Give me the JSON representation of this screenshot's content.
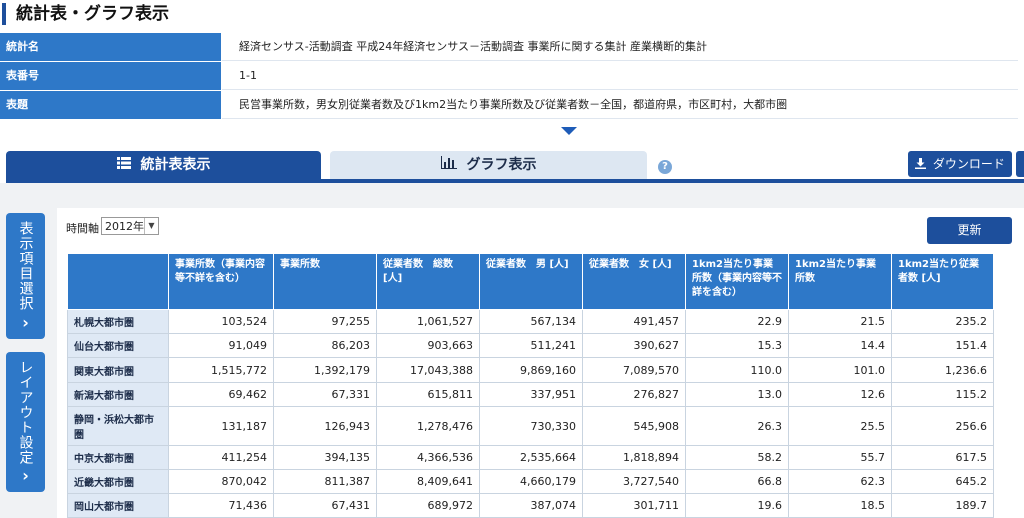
{
  "page": {
    "title": "統計表・グラフ表示"
  },
  "meta": [
    {
      "label": "統計名",
      "value": "経済センサス-活動調査 平成24年経済センサス－活動調査 事業所に関する集計 産業横断的集計"
    },
    {
      "label": "表番号",
      "value": "1-1"
    },
    {
      "label": "表題",
      "value": "民営事業所数，男女別従業者数及び1km2当たり事業所数及び従業者数－全国，都道府県，市区町村，大都市圏"
    }
  ],
  "tabs": {
    "table_label": "統計表表示",
    "graph_label": "グラフ表示"
  },
  "toolbar": {
    "help": "?",
    "download_label": "ダウンロード",
    "refresh_label": "更新"
  },
  "side": {
    "items_label": "表示項目選択",
    "layout_label": "レイアウト設定"
  },
  "filter": {
    "label": "時間軸",
    "selected": "2012年"
  },
  "table": {
    "headers": [
      "事業所数（事業内容等不詳を含む）",
      "事業所数",
      "従業者数　総数 [人]",
      "従業者数　男 [人]",
      "従業者数　女 [人]",
      "1km2当たり事業所数（事業内容等不詳を含む）",
      "1km2当たり事業所数",
      "1km2当たり従業者数 [人]"
    ],
    "rows": [
      {
        "name": "札幌大都市圏",
        "values": [
          "103,524",
          "97,255",
          "1,061,527",
          "567,134",
          "491,457",
          "22.9",
          "21.5",
          "235.2"
        ]
      },
      {
        "name": "仙台大都市圏",
        "values": [
          "91,049",
          "86,203",
          "903,663",
          "511,241",
          "390,627",
          "15.3",
          "14.4",
          "151.4"
        ]
      },
      {
        "name": "関東大都市圏",
        "values": [
          "1,515,772",
          "1,392,179",
          "17,043,388",
          "9,869,160",
          "7,089,570",
          "110.0",
          "101.0",
          "1,236.6"
        ]
      },
      {
        "name": "新潟大都市圏",
        "values": [
          "69,462",
          "67,331",
          "615,811",
          "337,951",
          "276,827",
          "13.0",
          "12.6",
          "115.2"
        ]
      },
      {
        "name": "静岡・浜松大都市圏",
        "values": [
          "131,187",
          "126,943",
          "1,278,476",
          "730,330",
          "545,908",
          "26.3",
          "25.5",
          "256.6"
        ]
      },
      {
        "name": "中京大都市圏",
        "values": [
          "411,254",
          "394,135",
          "4,366,536",
          "2,535,664",
          "1,818,894",
          "58.2",
          "55.7",
          "617.5"
        ]
      },
      {
        "name": "近畿大都市圏",
        "values": [
          "870,042",
          "811,387",
          "8,409,641",
          "4,660,179",
          "3,727,540",
          "66.8",
          "62.3",
          "645.2"
        ]
      },
      {
        "name": "岡山大都市圏",
        "values": [
          "71,436",
          "67,431",
          "689,972",
          "387,074",
          "301,711",
          "19.6",
          "18.5",
          "189.7"
        ]
      }
    ]
  }
}
